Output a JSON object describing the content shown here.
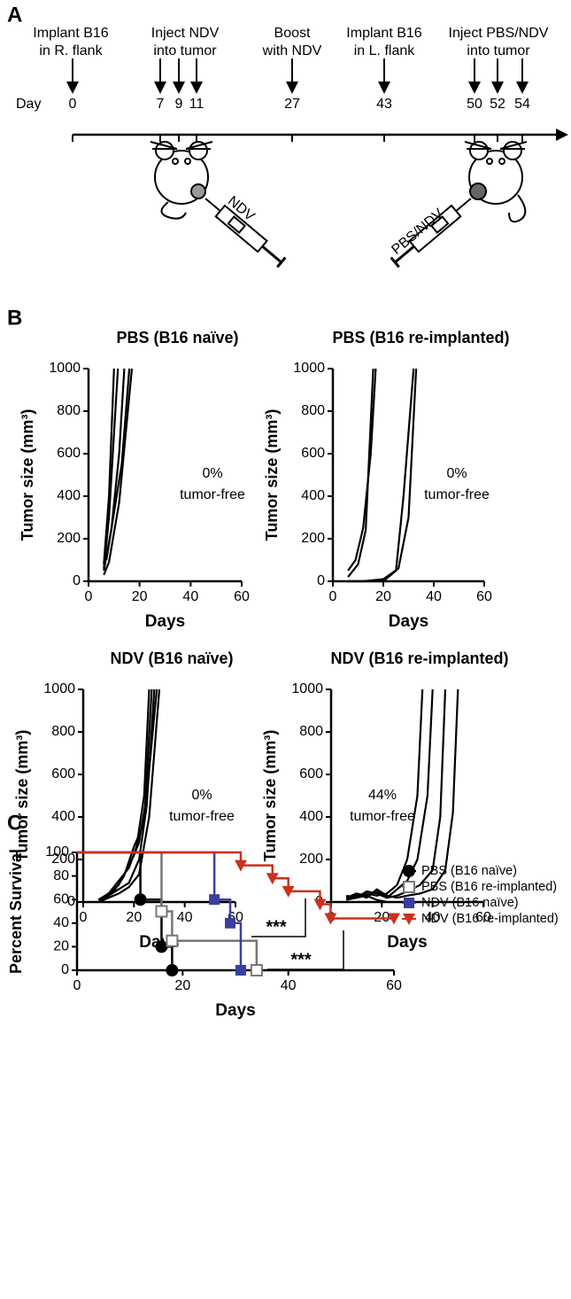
{
  "panel_labels": [
    "A",
    "B",
    "C"
  ],
  "timeline": {
    "day_label": "Day",
    "events": [
      {
        "lines": [
          "Implant B16",
          "in R. flank"
        ],
        "days": [
          0
        ]
      },
      {
        "lines": [
          "Inject NDV",
          "into tumor"
        ],
        "days": [
          7,
          9,
          11
        ]
      },
      {
        "lines": [
          "Boost",
          "with NDV"
        ],
        "days": [
          27
        ]
      },
      {
        "lines": [
          "Implant B16",
          "in L. flank"
        ],
        "days": [
          43
        ]
      },
      {
        "lines": [
          "Inject PBS/NDV",
          "into tumor"
        ],
        "days": [
          50,
          52,
          54
        ]
      }
    ],
    "syringe_labels": [
      "NDV",
      "PBS/NDV"
    ]
  },
  "chart_data": [
    {
      "type": "line",
      "title": "PBS (B16 naïve)",
      "xlabel": "Days",
      "ylabel": "Tumor size (mm³)",
      "xlim": [
        0,
        60
      ],
      "ylim": [
        0,
        1000
      ],
      "xticks": [
        0,
        20,
        40,
        60
      ],
      "yticks": [
        0,
        200,
        400,
        600,
        800,
        1000
      ],
      "annotation": [
        "0%",
        "tumor-free"
      ],
      "series": [
        {
          "color": "#000000",
          "x": [
            6,
            8,
            10
          ],
          "values": [
            80,
            400,
            1000
          ]
        },
        {
          "color": "#000000",
          "x": [
            6,
            8,
            11.5
          ],
          "values": [
            60,
            300,
            1000
          ]
        },
        {
          "color": "#000000",
          "x": [
            6,
            9,
            12,
            14
          ],
          "values": [
            50,
            250,
            600,
            1000
          ]
        },
        {
          "color": "#000000",
          "x": [
            6,
            8,
            12,
            17
          ],
          "values": [
            30,
            90,
            370,
            1000
          ]
        },
        {
          "color": "#000000",
          "x": [
            7,
            9,
            13,
            16
          ],
          "values": [
            100,
            250,
            550,
            1000
          ]
        }
      ]
    },
    {
      "type": "line",
      "title": "PBS (B16 re-implanted)",
      "xlabel": "Days",
      "ylabel": "Tumor size (mm³)",
      "xlim": [
        0,
        60
      ],
      "ylim": [
        0,
        1000
      ],
      "xticks": [
        0,
        20,
        40,
        60
      ],
      "yticks": [
        0,
        200,
        400,
        600,
        800,
        1000
      ],
      "annotation": [
        "0%",
        "tumor-free"
      ],
      "series": [
        {
          "color": "#000000",
          "x": [
            6,
            9,
            12,
            15,
            17
          ],
          "values": [
            50,
            100,
            250,
            600,
            1000
          ]
        },
        {
          "color": "#000000",
          "x": [
            6,
            10,
            13,
            16
          ],
          "values": [
            20,
            80,
            240,
            1000
          ]
        },
        {
          "color": "#000000",
          "x": [
            6,
            10,
            20,
            25,
            28,
            32
          ],
          "values": [
            0,
            0,
            0,
            50,
            400,
            1000
          ]
        },
        {
          "color": "#000000",
          "x": [
            6,
            12,
            20,
            26,
            30,
            33
          ],
          "values": [
            0,
            0,
            10,
            60,
            300,
            1000
          ]
        }
      ]
    },
    {
      "type": "line",
      "title": "NDV (B16 naïve)",
      "xlabel": "Days",
      "ylabel": "Tumor size (mm³)",
      "xlim": [
        0,
        60
      ],
      "ylim": [
        0,
        1000
      ],
      "xticks": [
        0,
        20,
        40,
        60
      ],
      "yticks": [
        0,
        200,
        400,
        600,
        800,
        1000
      ],
      "annotation": [
        "0%",
        "tumor-free"
      ],
      "series": [
        {
          "color": "#000000",
          "x": [
            6,
            10,
            14,
            18,
            21,
            24,
            26
          ],
          "values": [
            10,
            40,
            100,
            160,
            260,
            500,
            1000
          ]
        },
        {
          "color": "#000000",
          "x": [
            6,
            10,
            14,
            18,
            22,
            25,
            28
          ],
          "values": [
            10,
            30,
            60,
            90,
            200,
            450,
            1000
          ]
        },
        {
          "color": "#000000",
          "x": [
            6,
            10,
            14,
            17,
            20,
            22,
            25,
            29
          ],
          "values": [
            10,
            40,
            80,
            150,
            220,
            280,
            500,
            1000
          ]
        },
        {
          "color": "#000000",
          "x": [
            6,
            10,
            14,
            18,
            22,
            26,
            30
          ],
          "values": [
            0,
            20,
            40,
            70,
            130,
            400,
            1000
          ]
        },
        {
          "color": "#000000",
          "x": [
            6,
            12,
            16,
            20,
            24,
            27
          ],
          "values": [
            10,
            50,
            120,
            260,
            370,
            1000
          ]
        }
      ]
    },
    {
      "type": "line",
      "title": "NDV (B16 re-implanted)",
      "xlabel": "Days",
      "ylabel": "Tumor size (mm³)",
      "xlim": [
        0,
        60
      ],
      "ylim": [
        0,
        1000
      ],
      "xticks": [
        0,
        20,
        40,
        60
      ],
      "yticks": [
        0,
        200,
        400,
        600,
        800,
        1000
      ],
      "annotation": [
        "44%",
        "tumor-free"
      ],
      "series": [
        {
          "color": "#000000",
          "x": [
            6,
            10,
            14,
            18,
            22,
            26,
            30,
            34,
            36
          ],
          "values": [
            20,
            30,
            40,
            30,
            40,
            80,
            200,
            500,
            1000
          ]
        },
        {
          "color": "#000000",
          "x": [
            6,
            10,
            14,
            18,
            22,
            26,
            30,
            34,
            38,
            40
          ],
          "values": [
            30,
            20,
            50,
            40,
            20,
            60,
            100,
            200,
            500,
            1000
          ]
        },
        {
          "color": "#000000",
          "x": [
            6,
            10,
            14,
            18,
            22,
            26,
            30,
            35,
            40,
            43,
            45
          ],
          "values": [
            10,
            20,
            30,
            50,
            20,
            30,
            50,
            80,
            150,
            400,
            1000
          ]
        },
        {
          "color": "#000000",
          "x": [
            6,
            10,
            14,
            18,
            22,
            26,
            30,
            35,
            40,
            45,
            48,
            50
          ],
          "values": [
            10,
            40,
            20,
            60,
            30,
            20,
            30,
            40,
            60,
            150,
            420,
            1000
          ]
        },
        {
          "color": "#000000",
          "x": [
            6,
            10,
            14,
            18,
            22
          ],
          "values": [
            20,
            40,
            30,
            10,
            0
          ]
        }
      ]
    },
    {
      "type": "step",
      "xlabel": "Days",
      "ylabel": "Percent Survival",
      "xlim": [
        0,
        60
      ],
      "ylim": [
        0,
        100
      ],
      "xticks": [
        0,
        20,
        40,
        60
      ],
      "yticks": [
        0,
        20,
        40,
        60,
        80,
        100
      ],
      "legend": "top-right",
      "significance": [
        "***",
        "***"
      ],
      "series": [
        {
          "name": "PBS (B16 naïve)",
          "color": "#000000",
          "marker": "circle",
          "x": [
            0,
            12,
            16,
            18
          ],
          "values": [
            100,
            60,
            20,
            0
          ]
        },
        {
          "name": "PBS (B16 re-implanted)",
          "color": "#777777",
          "marker": "square-open",
          "x": [
            0,
            16,
            18,
            34
          ],
          "values": [
            100,
            50,
            25,
            0
          ]
        },
        {
          "name": "NDV (B16 naïve)",
          "color": "#3a3f9e",
          "marker": "square",
          "x": [
            0,
            26,
            29,
            31
          ],
          "values": [
            100,
            60,
            40,
            0
          ]
        },
        {
          "name": "NDV (B16 re-implanted)",
          "color": "#c8321e",
          "marker": "triangle-down",
          "x": [
            0,
            31,
            37,
            40,
            46,
            48,
            60
          ],
          "values": [
            100,
            89,
            78,
            67,
            56,
            44,
            44
          ]
        }
      ]
    }
  ]
}
